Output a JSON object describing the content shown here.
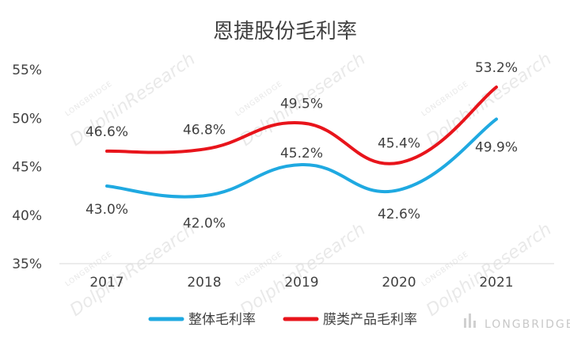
{
  "chart_data": {
    "type": "line",
    "title": "恩捷股份毛利率",
    "categories": [
      "2017",
      "2018",
      "2019",
      "2020",
      "2021"
    ],
    "ylim": [
      0.35,
      0.55
    ],
    "yticks": [
      0.35,
      0.4,
      0.45,
      0.5,
      0.55
    ],
    "ytick_labels": [
      "35%",
      "40%",
      "45%",
      "50%",
      "55%"
    ],
    "grid": false,
    "legend_position": "bottom",
    "series": [
      {
        "name": "整体毛利率",
        "color": "#1fa9e1",
        "values": [
          0.43,
          0.42,
          0.452,
          0.426,
          0.499
        ],
        "labels": [
          "43.0%",
          "42.0%",
          "45.2%",
          "42.6%",
          "49.9%"
        ]
      },
      {
        "name": "膜类产品毛利率",
        "color": "#e8141b",
        "values": [
          0.466,
          0.468,
          0.495,
          0.454,
          0.532
        ],
        "labels": [
          "46.6%",
          "46.8%",
          "49.5%",
          "45.4%",
          "53.2%"
        ]
      }
    ]
  },
  "watermark": {
    "text": "DolphinResearch",
    "small_text": "LONGBRIDGE",
    "brand": "LONGBRIDGE"
  }
}
